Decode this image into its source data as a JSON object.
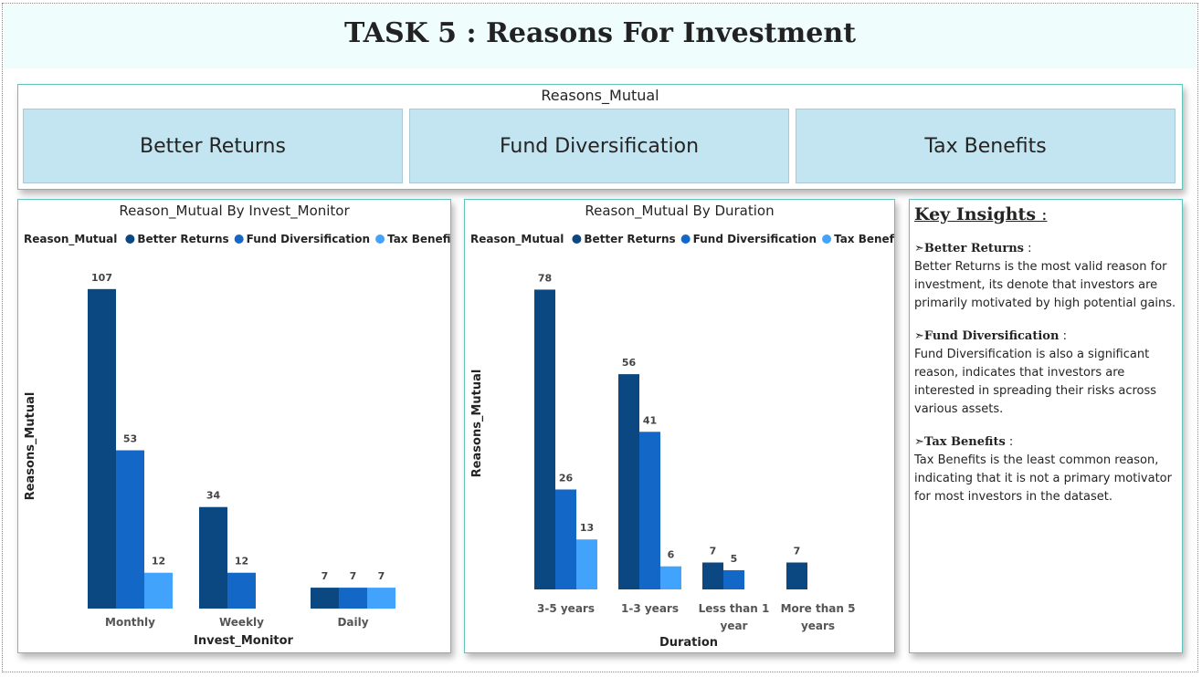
{
  "page": {
    "title": "TASK 5 : Reasons For Investment"
  },
  "slicer": {
    "title": "Reasons_Mutual",
    "items": [
      "Better Returns",
      "Fund Diversification",
      "Tax Benefits"
    ]
  },
  "colors": {
    "better_returns": "#0b4780",
    "fund_diversification": "#1367c6",
    "tax_benefits": "#41a3fb"
  },
  "chart_data": [
    {
      "type": "bar",
      "title": "Reason_Mutual By Invest_Monitor",
      "legend_title": "Reason_Mutual",
      "legend_position": "top-left",
      "xlabel": "Invest_Monitor",
      "ylabel": "Reasons_Mutual",
      "ylim": [
        0,
        110
      ],
      "grid": false,
      "categories": [
        "Monthly",
        "Weekly",
        "Daily"
      ],
      "series": [
        {
          "name": "Better Returns",
          "color": "#0b4780",
          "values": [
            107,
            34,
            7
          ]
        },
        {
          "name": "Fund Diversification",
          "color": "#1367c6",
          "values": [
            53,
            12,
            7
          ]
        },
        {
          "name": "Tax Benefits",
          "color": "#41a3fb",
          "values": [
            12,
            null,
            7
          ]
        }
      ]
    },
    {
      "type": "bar",
      "title": "Reason_Mutual By Duration",
      "legend_title": "Reason_Mutual",
      "legend_position": "top-left",
      "xlabel": "Duration",
      "ylabel": "Reasons_Mutual",
      "ylim": [
        0,
        80
      ],
      "grid": false,
      "categories": [
        "3-5 years",
        "1-3 years",
        "Less than 1 year",
        "More than 5 years"
      ],
      "series": [
        {
          "name": "Better Returns",
          "color": "#0b4780",
          "values": [
            78,
            56,
            7,
            7
          ]
        },
        {
          "name": "Fund Diversification",
          "color": "#1367c6",
          "values": [
            26,
            41,
            5,
            null
          ]
        },
        {
          "name": "Tax Benefits",
          "color": "#41a3fb",
          "values": [
            13,
            6,
            null,
            null
          ]
        }
      ]
    }
  ],
  "insights": {
    "title": "Key Insights",
    "title_suffix": " :",
    "items": [
      {
        "bullet": "➣",
        "heading": "Better Returns",
        "sep": " :",
        "text": "Better Returns is the most valid reason for investment, its denote that investors are primarily motivated by high potential gains."
      },
      {
        "bullet": "➣",
        "heading": "Fund Diversification",
        "sep": " :",
        "text": "Fund Diversification is also a significant reason, indicates that investors are interested in spreading their risks across various assets."
      },
      {
        "bullet": "➣",
        "heading": "Tax Benefits",
        "sep": " :",
        "text": "Tax Benefits is the least common reason, indicating that it is not a primary motivator for most investors in the dataset."
      }
    ]
  }
}
